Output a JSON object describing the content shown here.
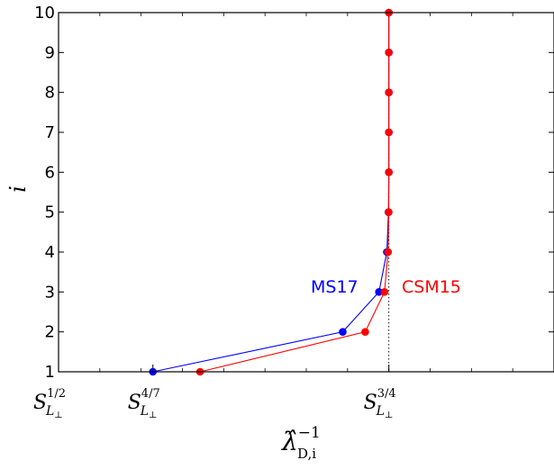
{
  "chart_data": {
    "type": "line",
    "title": "",
    "xlabel": "λ̂",
    "xlabel_sub": "D,i",
    "xlabel_sup": "−1",
    "ylabel": "i",
    "x_tick_labels": [
      {
        "base": "S",
        "sub": "L",
        "perp": "⊥",
        "sup": "1/2",
        "value": 0.5
      },
      {
        "base": "S",
        "sub": "L",
        "perp": "⊥",
        "sup": "4/7",
        "value": 0.5714
      },
      {
        "base": "S",
        "sub": "L",
        "perp": "⊥",
        "sup": "3/4",
        "value": 0.75
      }
    ],
    "y_ticks": [
      1,
      2,
      3,
      4,
      5,
      6,
      7,
      8,
      9,
      10
    ],
    "xlim": [
      0.5,
      0.875
    ],
    "ylim": [
      1,
      10
    ],
    "reference_line": {
      "x": 0.75,
      "style": "dotted"
    },
    "series": [
      {
        "name": "MS17",
        "color": "#0000ff",
        "x": [
          0.5714,
          0.7151,
          0.7425,
          0.7485,
          0.7497,
          0.75,
          0.75,
          0.75,
          0.75,
          0.75
        ],
        "y": [
          1,
          2,
          3,
          4,
          5,
          6,
          7,
          8,
          9,
          10
        ]
      },
      {
        "name": "CSM15",
        "color": "#ff0000",
        "x": [
          0.6071,
          0.7321,
          0.7467,
          0.7494,
          0.7499,
          0.75,
          0.75,
          0.75,
          0.75,
          0.75
        ],
        "y": [
          1,
          2,
          3,
          4,
          5,
          6,
          7,
          8,
          9,
          10
        ]
      }
    ],
    "grid": false,
    "legend": "inline labels"
  }
}
